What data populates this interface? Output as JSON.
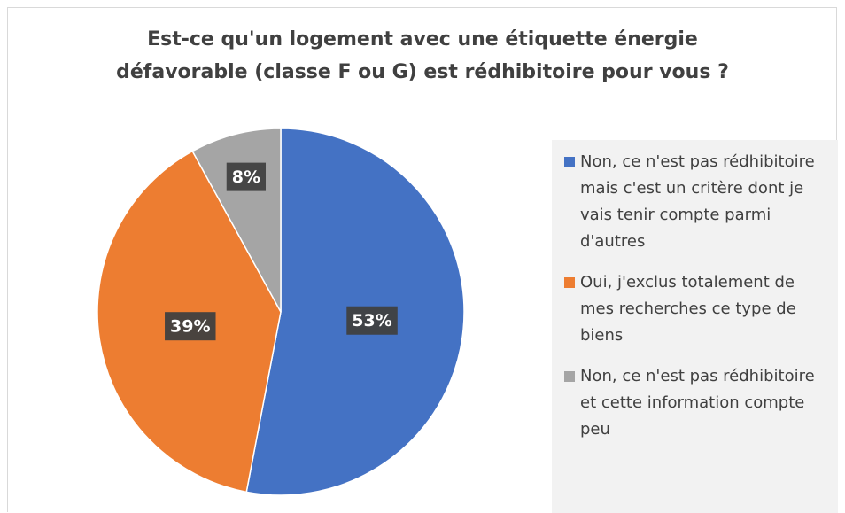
{
  "chart_data": {
    "type": "pie",
    "title": "Est-ce qu'un logement avec une étiquette énergie défavorable (classe F ou G) est rédhibitoire pour vous ?",
    "categories": [
      "Non, ce n'est pas rédhibitoire mais c'est un critère dont je vais tenir compte parmi d'autres",
      "Oui, j'exclus totalement de mes recherches ce type de biens",
      "Non, ce n'est pas rédhibitoire et cette information compte peu"
    ],
    "values": [
      53,
      39,
      8
    ],
    "value_labels": [
      "53%",
      "39%",
      "8%"
    ],
    "colors": [
      "#4472c4",
      "#ed7d31",
      "#a5a5a5"
    ],
    "legend": "right"
  }
}
